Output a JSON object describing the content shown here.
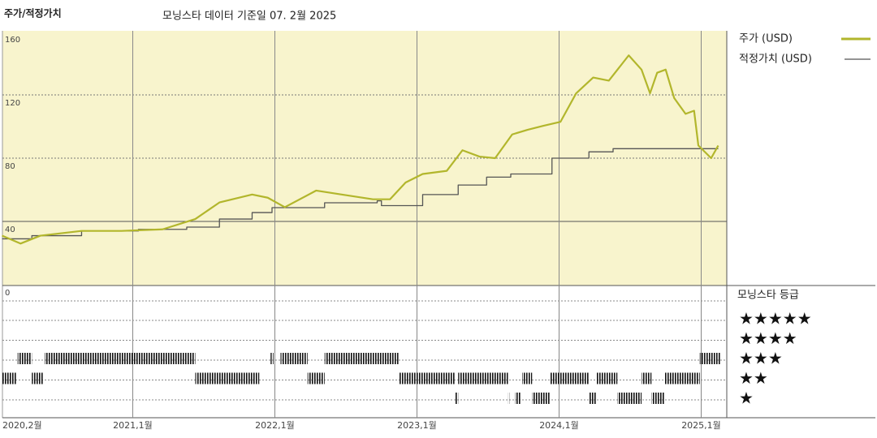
{
  "chart_data": {
    "type": "line",
    "title": "주가/적정가치",
    "subtitle": "모닝스타 데이터 기준일 07. 2월 2025",
    "xlim": [
      2020.083,
      2025.18
    ],
    "xticks": [
      {
        "value": 2020.083,
        "label": "2020,2월"
      },
      {
        "value": 2021.0,
        "label": "2021,1월"
      },
      {
        "value": 2022.0,
        "label": "2022,1월"
      },
      {
        "value": 2023.0,
        "label": "2023,1월"
      },
      {
        "value": 2024.0,
        "label": "2024,1월"
      },
      {
        "value": 2025.0,
        "label": "2025,1월"
      }
    ],
    "ylim": [
      0,
      160
    ],
    "yticks": [
      0,
      40,
      80,
      120,
      160
    ],
    "series": [
      {
        "name": "주가 (USD)",
        "color": "#b2b62c",
        "x": [
          2020.08,
          2020.21,
          2020.35,
          2020.64,
          2020.92,
          2021.21,
          2021.44,
          2021.61,
          2021.84,
          2021.95,
          2022.07,
          2022.29,
          2022.47,
          2022.69,
          2022.81,
          2022.92,
          2023.04,
          2023.21,
          2023.32,
          2023.44,
          2023.55,
          2023.67,
          2023.78,
          2023.89,
          2024.01,
          2024.12,
          2024.24,
          2024.35,
          2024.49,
          2024.58,
          2024.64,
          2024.69,
          2024.75,
          2024.81,
          2024.89,
          2024.95,
          2024.98,
          2025.07,
          2025.12
        ],
        "values": [
          31,
          26,
          31,
          34,
          34,
          35,
          41.5,
          52,
          57,
          55,
          49,
          59.5,
          57,
          54,
          54,
          64.6,
          70,
          72,
          85,
          81,
          80,
          95,
          98,
          100.5,
          103,
          121,
          131,
          129,
          145,
          136,
          121,
          134,
          136,
          118,
          108,
          110,
          88,
          80,
          88
        ]
      },
      {
        "name": "적정가치 (USD)",
        "color": "#555555",
        "step": true,
        "x": [
          2020.08,
          2020.29,
          2020.64,
          2021.04,
          2021.38,
          2021.61,
          2021.84,
          2021.98,
          2022.35,
          2022.72,
          2022.75,
          2023.04,
          2023.29,
          2023.49,
          2023.66,
          2023.95,
          2024.21,
          2024.38,
          2024.98,
          2025.12
        ],
        "values": [
          29,
          31,
          34,
          35,
          36.4,
          41.5,
          45.6,
          48.7,
          51.8,
          53,
          50,
          57,
          63,
          68,
          70,
          80,
          84,
          86,
          86,
          86
        ]
      }
    ],
    "ratings_title": "모닝스타 등급",
    "star_labels": [
      "★★★★★",
      "★★★★",
      "★★★",
      "★★",
      "★"
    ],
    "ratings": [
      {
        "start": 2020.08,
        "end": 2020.18,
        "stars": 2
      },
      {
        "start": 2020.19,
        "end": 2020.29,
        "stars": 3
      },
      {
        "start": 2020.29,
        "end": 2020.37,
        "stars": 2
      },
      {
        "start": 2020.38,
        "end": 2021.44,
        "stars": 3
      },
      {
        "start": 2021.44,
        "end": 2021.89,
        "stars": 2
      },
      {
        "start": 2021.97,
        "end": 2021.99,
        "stars": 3
      },
      {
        "start": 2022.04,
        "end": 2022.23,
        "stars": 3
      },
      {
        "start": 2022.23,
        "end": 2022.35,
        "stars": 2
      },
      {
        "start": 2022.35,
        "end": 2022.87,
        "stars": 3
      },
      {
        "start": 2022.87,
        "end": 2023.27,
        "stars": 2
      },
      {
        "start": 2023.27,
        "end": 2023.29,
        "stars": 1
      },
      {
        "start": 2023.29,
        "end": 2023.64,
        "stars": 2
      },
      {
        "start": 2023.64,
        "end": 2023.65,
        "stars": 1
      },
      {
        "start": 2023.69,
        "end": 2023.73,
        "stars": 1
      },
      {
        "start": 2023.74,
        "end": 2023.81,
        "stars": 2
      },
      {
        "start": 2023.81,
        "end": 2023.94,
        "stars": 1
      },
      {
        "start": 2023.94,
        "end": 2024.21,
        "stars": 2
      },
      {
        "start": 2024.21,
        "end": 2024.26,
        "stars": 1
      },
      {
        "start": 2024.26,
        "end": 2024.41,
        "stars": 2
      },
      {
        "start": 2024.41,
        "end": 2024.58,
        "stars": 1
      },
      {
        "start": 2024.58,
        "end": 2024.65,
        "stars": 2
      },
      {
        "start": 2024.65,
        "end": 2024.74,
        "stars": 1
      },
      {
        "start": 2024.74,
        "end": 2024.99,
        "stars": 2
      },
      {
        "start": 2024.99,
        "end": 2025.14,
        "stars": 3
      }
    ]
  }
}
